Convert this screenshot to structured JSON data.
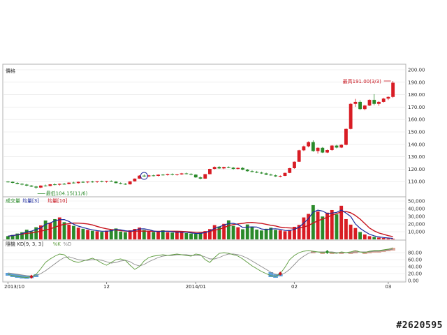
{
  "watermark": "#2620595",
  "chart_data": [
    {
      "type": "candlestick",
      "title": "價格",
      "ylim": [
        100,
        200
      ],
      "y_ticks": [
        110,
        120,
        130,
        140,
        150,
        160,
        170,
        180,
        190,
        200
      ],
      "y_tick_labels": [
        "110.00",
        "120.00",
        "130.00",
        "140.00",
        "150.00",
        "160.00",
        "170.00",
        "180.00",
        "190.00",
        "200.00"
      ],
      "up_color": "#d81c24",
      "down_color": "#2a8a2a",
      "annotations": {
        "max_label": "最高191.00(3/3)",
        "min_label": "最低104.15(11/6)"
      },
      "candles": [
        [
          110,
          110.4,
          109.2,
          109.8
        ],
        [
          109.8,
          110.2,
          108.6,
          109.0
        ],
        [
          109.0,
          109.5,
          107.8,
          108.2
        ],
        [
          108.2,
          108.8,
          107.0,
          107.6
        ],
        [
          107.6,
          108.2,
          106.2,
          106.8
        ],
        [
          106.8,
          107.2,
          105.6,
          106.0
        ],
        [
          106.0,
          106.6,
          104.15,
          105.2
        ],
        [
          105.2,
          107.0,
          104.8,
          106.8
        ],
        [
          106.8,
          107.6,
          106.0,
          106.5
        ],
        [
          106.5,
          108.0,
          106.2,
          107.8
        ],
        [
          107.8,
          108.6,
          107.0,
          107.5
        ],
        [
          107.5,
          108.4,
          106.8,
          108.2
        ],
        [
          108.2,
          109.0,
          107.6,
          108.0
        ],
        [
          108.0,
          109.4,
          107.8,
          109.2
        ],
        [
          109.2,
          109.8,
          108.4,
          108.8
        ],
        [
          108.8,
          110.0,
          108.4,
          109.8
        ],
        [
          109.8,
          110.4,
          109.0,
          109.4
        ],
        [
          109.4,
          110.2,
          108.8,
          110.0
        ],
        [
          110.0,
          110.6,
          109.2,
          109.6
        ],
        [
          109.6,
          110.4,
          109.0,
          110.2
        ],
        [
          110.2,
          110.8,
          109.4,
          109.8
        ],
        [
          109.8,
          110.6,
          109.2,
          110.4
        ],
        [
          110.4,
          111.0,
          109.8,
          110.0
        ],
        [
          110.0,
          110.4,
          108.6,
          108.8
        ],
        [
          108.8,
          109.4,
          107.8,
          108.2
        ],
        [
          108.2,
          108.8,
          107.4,
          107.8
        ],
        [
          107.8,
          110.4,
          107.6,
          110.2
        ],
        [
          110.2,
          112.6,
          110.0,
          112.4
        ],
        [
          112.4,
          115.2,
          112.2,
          114.8
        ],
        [
          114.8,
          115.8,
          113.8,
          114.2
        ],
        [
          114.2,
          115.4,
          113.6,
          115.0
        ],
        [
          115.0,
          115.6,
          114.2,
          114.6
        ],
        [
          114.6,
          115.8,
          114.2,
          115.6
        ],
        [
          115.6,
          116.2,
          114.8,
          115.2
        ],
        [
          115.2,
          116.4,
          114.8,
          116.0
        ],
        [
          116.0,
          116.6,
          115.0,
          115.4
        ],
        [
          115.4,
          116.2,
          114.8,
          115.8
        ],
        [
          115.8,
          117.0,
          115.4,
          116.6
        ],
        [
          116.6,
          117.2,
          115.8,
          116.2
        ],
        [
          116.2,
          116.8,
          115.0,
          115.6
        ],
        [
          115.6,
          116.0,
          113.0,
          113.4
        ],
        [
          113.4,
          114.2,
          111.8,
          112.4
        ],
        [
          112.4,
          116.2,
          112.2,
          116.0
        ],
        [
          116.0,
          120.4,
          115.8,
          120.2
        ],
        [
          120.2,
          122.2,
          119.8,
          121.8
        ],
        [
          121.8,
          122.4,
          120.2,
          120.6
        ],
        [
          120.6,
          122.0,
          120.0,
          121.8
        ],
        [
          121.8,
          122.2,
          120.8,
          121.2
        ],
        [
          121.2,
          121.8,
          119.6,
          120.2
        ],
        [
          120.2,
          121.4,
          119.8,
          121.0
        ],
        [
          121.0,
          121.6,
          119.2,
          119.6
        ],
        [
          119.6,
          120.2,
          118.0,
          118.4
        ],
        [
          118.4,
          119.2,
          117.4,
          117.8
        ],
        [
          117.8,
          118.6,
          116.8,
          117.2
        ],
        [
          117.2,
          118.0,
          116.2,
          116.6
        ],
        [
          116.6,
          117.2,
          115.2,
          115.6
        ],
        [
          115.6,
          116.4,
          114.8,
          115.0
        ],
        [
          115.0,
          115.6,
          113.8,
          114.2
        ],
        [
          114.2,
          115.0,
          113.4,
          114.6
        ],
        [
          114.6,
          117.2,
          114.4,
          117.0
        ],
        [
          117.0,
          121.0,
          116.8,
          120.8
        ],
        [
          120.8,
          126.2,
          120.4,
          126.0
        ],
        [
          126.0,
          135.6,
          125.8,
          135.2
        ],
        [
          135.2,
          139.0,
          134.6,
          138.4
        ],
        [
          138.4,
          142.4,
          137.6,
          141.8
        ],
        [
          141.8,
          143.2,
          134.0,
          134.6
        ],
        [
          134.6,
          137.6,
          132.6,
          137.2
        ],
        [
          137.2,
          137.8,
          133.0,
          133.4
        ],
        [
          133.4,
          135.8,
          133.0,
          135.4
        ],
        [
          135.4,
          139.4,
          134.8,
          139.0
        ],
        [
          139.0,
          139.6,
          136.8,
          137.4
        ],
        [
          137.4,
          140.0,
          137.0,
          139.6
        ],
        [
          139.6,
          152.8,
          139.2,
          152.4
        ],
        [
          152.4,
          173.2,
          152.0,
          172.6
        ],
        [
          172.6,
          176.6,
          170.2,
          174.2
        ],
        [
          174.2,
          175.4,
          167.6,
          168.4
        ],
        [
          168.4,
          171.8,
          167.4,
          171.2
        ],
        [
          171.2,
          176.2,
          170.8,
          175.8
        ],
        [
          175.8,
          180.4,
          171.4,
          172.6
        ],
        [
          172.6,
          174.8,
          171.0,
          174.2
        ],
        [
          174.2,
          177.4,
          173.6,
          176.8
        ],
        [
          176.8,
          178.6,
          175.6,
          178.2
        ],
        [
          178.2,
          191.0,
          177.4,
          189.6
        ]
      ]
    },
    {
      "type": "bar",
      "title": "成交量",
      "legend": [
        "成交量",
        "均量[3]",
        "均量[10]"
      ],
      "legend_colors": [
        "#2a8a2a",
        "#1c2a9e",
        "#c8141e"
      ],
      "ylim": [
        0,
        50000
      ],
      "y_ticks": [
        10000,
        20000,
        30000,
        40000,
        50000
      ],
      "y_tick_labels": [
        "10,000",
        "20,000",
        "30,000",
        "40,000",
        "50,000"
      ],
      "values": [
        4200,
        5800,
        7600,
        9200,
        12600,
        10400,
        15800,
        18200,
        24600,
        21800,
        26400,
        28600,
        22400,
        19200,
        17600,
        15200,
        13800,
        12400,
        11200,
        10600,
        9800,
        11400,
        12800,
        14200,
        10200,
        9400,
        11800,
        13600,
        15400,
        12200,
        10800,
        9600,
        10200,
        11800,
        9400,
        8800,
        10400,
        9200,
        8200,
        7600,
        7200,
        8400,
        10800,
        13400,
        18600,
        16800,
        20200,
        24800,
        17600,
        15800,
        13200,
        19400,
        16200,
        12800,
        11600,
        13800,
        15200,
        12400,
        11800,
        10600,
        12200,
        16400,
        18800,
        28600,
        33200,
        44600,
        36400,
        29800,
        34800,
        38200,
        32600,
        43800,
        26400,
        19200,
        14800,
        9600,
        6400,
        4200,
        3200,
        2400,
        1800,
        1200,
        900
      ],
      "ma3": [
        4200,
        5000,
        5900,
        7500,
        9800,
        10700,
        12900,
        14800,
        19500,
        21500,
        24300,
        25600,
        25800,
        23400,
        19700,
        17300,
        15500,
        13800,
        12500,
        11400,
        10600,
        10600,
        11300,
        12800,
        12400,
        11300,
        10500,
        11600,
        13600,
        13700,
        12800,
        10900,
        10200,
        10500,
        10500,
        10000,
        9500,
        9500,
        9300,
        8500,
        7700,
        7700,
        8800,
        10900,
        14300,
        16300,
        18500,
        20600,
        20900,
        19400,
        15500,
        16100,
        16300,
        16100,
        13500,
        12700,
        13500,
        13800,
        13100,
        11600,
        11500,
        13100,
        15800,
        21300,
        26900,
        35500,
        38100,
        36900,
        33700,
        34300,
        35200,
        38200,
        34300,
        29800,
        20100,
        14500,
        10300,
        6700,
        4600,
        3300,
        2500,
        1800,
        1300
      ],
      "ma10": [
        4200,
        5000,
        5900,
        6700,
        7900,
        8400,
        9500,
        10600,
        12200,
        13600,
        15800,
        18100,
        19600,
        20500,
        21300,
        21200,
        20700,
        20100,
        18800,
        16900,
        15200,
        13800,
        12800,
        12200,
        11500,
        10800,
        10400,
        10600,
        10900,
        10700,
        10700,
        10500,
        10500,
        10600,
        10600,
        10600,
        10600,
        10400,
        10000,
        9600,
        9300,
        9200,
        9400,
        10400,
        11800,
        13200,
        15200,
        17900,
        19300,
        20200,
        20800,
        21800,
        22100,
        21500,
        20800,
        19600,
        18400,
        17500,
        15900,
        15300,
        14900,
        14500,
        14800,
        16100,
        18200,
        21300,
        24400,
        26400,
        28800,
        31500,
        33600,
        35800,
        36500,
        34600,
        31100,
        26500,
        20700,
        14800,
        11200,
        8300,
        6600,
        4800,
        3600
      ]
    },
    {
      "type": "line",
      "title": "隨機 KD",
      "legend": [
        "隨機 KD[9, 3, 3]",
        "%K",
        "%D"
      ],
      "ylim": [
        0,
        100
      ],
      "y_ticks": [
        0,
        20,
        40,
        60,
        80
      ],
      "y_tick_labels": [
        "0.00",
        "20.00",
        "40.00",
        "60.00",
        "80.00"
      ],
      "k": [
        18,
        14,
        12,
        10,
        9,
        11,
        18,
        34,
        52,
        62,
        70,
        76,
        74,
        62,
        55,
        52,
        56,
        60,
        64,
        58,
        50,
        44,
        52,
        60,
        62,
        58,
        44,
        32,
        40,
        56,
        66,
        70,
        72,
        74,
        72,
        74,
        76,
        74,
        72,
        70,
        76,
        74,
        60,
        52,
        66,
        78,
        80,
        78,
        74,
        70,
        62,
        52,
        42,
        34,
        26,
        20,
        14,
        12,
        20,
        38,
        60,
        72,
        80,
        84,
        86,
        84,
        82,
        80,
        82,
        80,
        78,
        82,
        80,
        82,
        86,
        82,
        80,
        84,
        86,
        86,
        88,
        90,
        94
      ],
      "d": [
        22,
        20,
        18,
        16,
        14,
        13,
        14,
        20,
        28,
        38,
        48,
        58,
        66,
        68,
        64,
        60,
        58,
        58,
        60,
        60,
        58,
        54,
        50,
        52,
        56,
        58,
        54,
        46,
        42,
        46,
        54,
        60,
        66,
        70,
        72,
        72,
        74,
        74,
        74,
        72,
        72,
        72,
        68,
        62,
        62,
        66,
        72,
        76,
        76,
        74,
        70,
        64,
        56,
        48,
        40,
        32,
        24,
        18,
        16,
        22,
        32,
        46,
        60,
        70,
        78,
        82,
        82,
        82,
        82,
        82,
        80,
        80,
        80,
        80,
        82,
        82,
        82,
        82,
        84,
        84,
        86,
        88,
        90
      ],
      "signals": [
        {
          "index": 5,
          "kind": "buy"
        },
        {
          "index": 58,
          "kind": "buy"
        },
        {
          "index": 68,
          "kind": "sell"
        }
      ]
    }
  ],
  "x_axis": {
    "date_labels": [
      {
        "index": 0,
        "text": "2013/10"
      },
      {
        "index": 21,
        "text": "12"
      },
      {
        "index": 40,
        "text": "2014/01"
      },
      {
        "index": 61,
        "text": "02"
      },
      {
        "index": 81,
        "text": "03"
      }
    ]
  }
}
